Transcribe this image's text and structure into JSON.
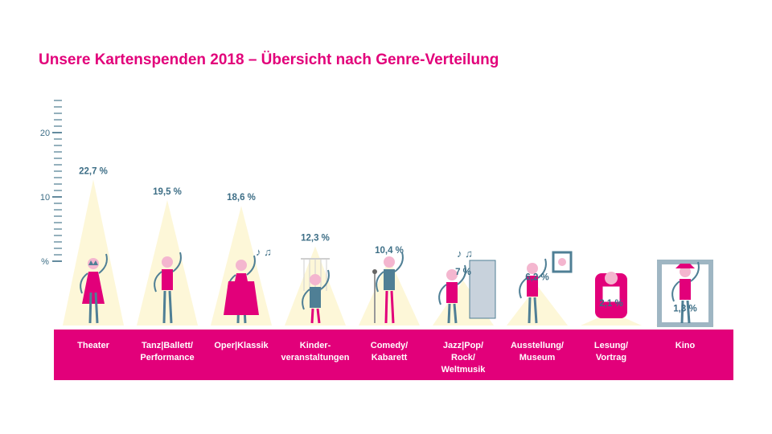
{
  "colors": {
    "accent": "#e2007a",
    "axis": "#3d6e86",
    "spotlight": "#fdf7d8",
    "band": "#e2007a",
    "band_text": "#ffffff",
    "figure_secondary": "#4f7f95"
  },
  "chart_data": {
    "type": "bar",
    "title": "Unsere Kartenspenden 2018 – Übersicht nach Genre-Verteilung",
    "y_unit_label": "%",
    "y_tick_labels": [
      "10",
      "20"
    ],
    "ylim": [
      0,
      24
    ],
    "categories": [
      "Theater",
      "Tanz|Ballett/ Performance",
      "Oper|Klassik",
      "Kinder- veranstaltungen",
      "Comedy/ Kabarett",
      "Jazz|Pop/ Rock/ Weltmusik",
      "Ausstellung/ Museum",
      "Lesung/ Vortrag",
      "Kino"
    ],
    "category_lines": [
      [
        "Theater"
      ],
      [
        "Tanz|Ballett/",
        "Performance"
      ],
      [
        "Oper|Klassik"
      ],
      [
        "Kinder-",
        "veranstaltungen"
      ],
      [
        "Comedy/",
        "Kabarett"
      ],
      [
        "Jazz|Pop/",
        "Rock/",
        "Weltmusik"
      ],
      [
        "Ausstellung/",
        "Museum"
      ],
      [
        "Lesung/",
        "Vortrag"
      ],
      [
        "Kino"
      ]
    ],
    "values": [
      22.7,
      19.5,
      18.6,
      12.3,
      10.4,
      7,
      6.2,
      2.1,
      1.3
    ],
    "value_labels": [
      "22,7 %",
      "19,5 %",
      "18,6 %",
      "12,3 %",
      "10,4 %",
      "7 %",
      "6,2 %",
      "2,1 %",
      "1,3 %"
    ],
    "icons": [
      "theater-performer-icon",
      "dancer-icon",
      "opera-singer-icon",
      "marionette-icon",
      "comedian-microphone-icon",
      "piano-player-icon",
      "museum-visitor-icon",
      "reader-armchair-icon",
      "cowboy-filmstrip-icon"
    ],
    "grid": false,
    "legend": "none"
  }
}
